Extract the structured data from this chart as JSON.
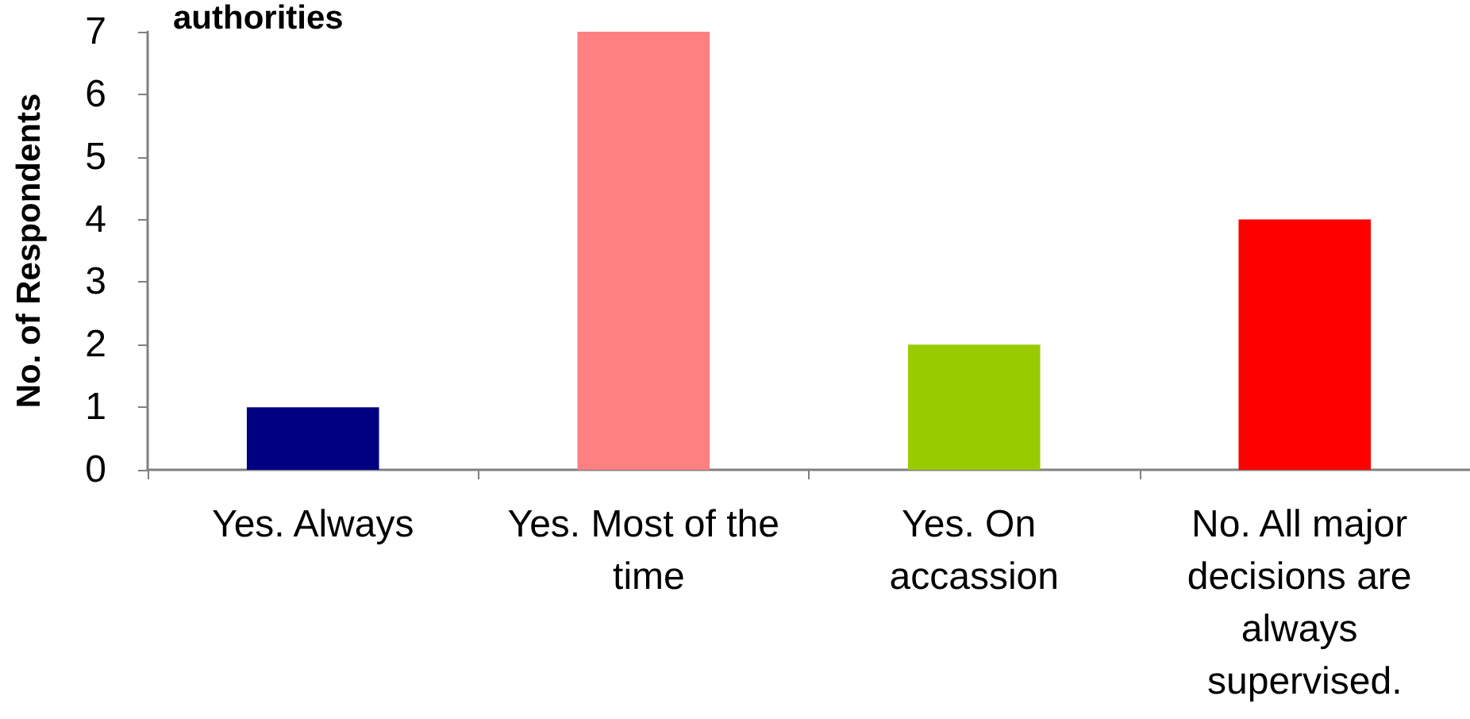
{
  "chart_data": {
    "type": "bar",
    "title": "authorities",
    "ylabel": "No. of Respondents",
    "categories": [
      "Yes. Always",
      "Yes. Most of the time",
      "Yes. On accassion",
      "No. All major decisions are always supervised."
    ],
    "values": [
      1,
      7,
      2,
      4
    ],
    "colors": [
      "#000080",
      "#ff8080",
      "#99cc00",
      "#ff0000"
    ],
    "ylim": [
      0,
      7
    ],
    "yticks": [
      0,
      1,
      2,
      3,
      4,
      5,
      6,
      7
    ]
  }
}
